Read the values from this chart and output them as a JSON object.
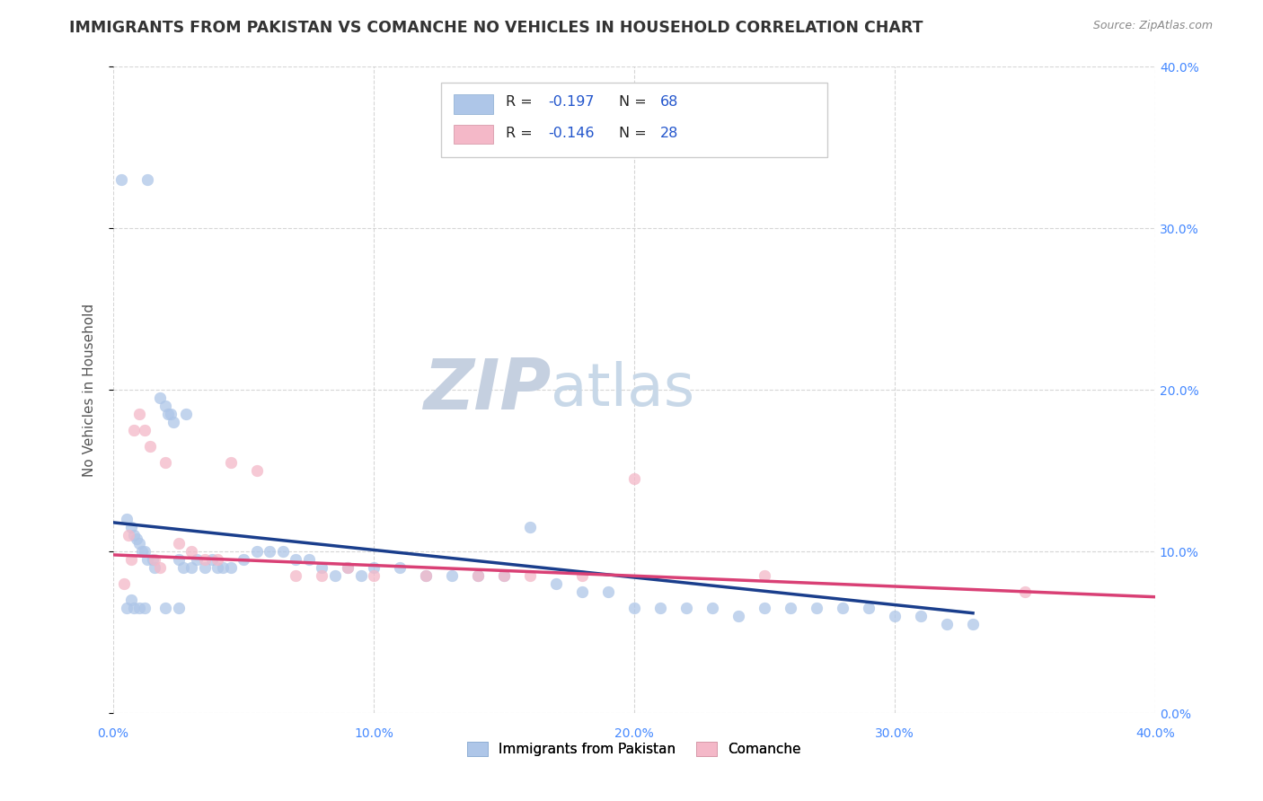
{
  "title": "IMMIGRANTS FROM PAKISTAN VS COMANCHE NO VEHICLES IN HOUSEHOLD CORRELATION CHART",
  "source_text": "Source: ZipAtlas.com",
  "ylabel": "No Vehicles in Household",
  "right_ytick_labels": [
    "0.0%",
    "10.0%",
    "20.0%",
    "30.0%",
    "40.0%"
  ],
  "right_ytick_values": [
    0.0,
    0.1,
    0.2,
    0.3,
    0.4
  ],
  "xlim": [
    0.0,
    0.4
  ],
  "ylim": [
    0.0,
    0.4
  ],
  "xtick_labels": [
    "0.0%",
    "10.0%",
    "20.0%",
    "30.0%",
    "40.0%"
  ],
  "xtick_values": [
    0.0,
    0.1,
    0.2,
    0.3,
    0.4
  ],
  "watermark_zip": "ZIP",
  "watermark_atlas": "atlas",
  "legend_labels_bottom": [
    "Immigrants from Pakistan",
    "Comanche"
  ],
  "blue_scatter_x": [
    0.003,
    0.013,
    0.005,
    0.007,
    0.008,
    0.009,
    0.01,
    0.011,
    0.012,
    0.013,
    0.015,
    0.016,
    0.018,
    0.02,
    0.021,
    0.022,
    0.023,
    0.025,
    0.027,
    0.028,
    0.03,
    0.032,
    0.035,
    0.038,
    0.04,
    0.042,
    0.045,
    0.05,
    0.055,
    0.06,
    0.065,
    0.07,
    0.075,
    0.08,
    0.085,
    0.09,
    0.095,
    0.1,
    0.11,
    0.12,
    0.13,
    0.14,
    0.15,
    0.16,
    0.17,
    0.18,
    0.19,
    0.2,
    0.21,
    0.22,
    0.23,
    0.24,
    0.25,
    0.26,
    0.27,
    0.28,
    0.29,
    0.3,
    0.31,
    0.32,
    0.33,
    0.005,
    0.007,
    0.008,
    0.01,
    0.012,
    0.02,
    0.025
  ],
  "blue_scatter_y": [
    0.33,
    0.33,
    0.12,
    0.115,
    0.11,
    0.108,
    0.105,
    0.1,
    0.1,
    0.095,
    0.095,
    0.09,
    0.195,
    0.19,
    0.185,
    0.185,
    0.18,
    0.095,
    0.09,
    0.185,
    0.09,
    0.095,
    0.09,
    0.095,
    0.09,
    0.09,
    0.09,
    0.095,
    0.1,
    0.1,
    0.1,
    0.095,
    0.095,
    0.09,
    0.085,
    0.09,
    0.085,
    0.09,
    0.09,
    0.085,
    0.085,
    0.085,
    0.085,
    0.115,
    0.08,
    0.075,
    0.075,
    0.065,
    0.065,
    0.065,
    0.065,
    0.06,
    0.065,
    0.065,
    0.065,
    0.065,
    0.065,
    0.06,
    0.06,
    0.055,
    0.055,
    0.065,
    0.07,
    0.065,
    0.065,
    0.065,
    0.065,
    0.065
  ],
  "pink_scatter_x": [
    0.004,
    0.006,
    0.007,
    0.008,
    0.01,
    0.012,
    0.014,
    0.016,
    0.018,
    0.02,
    0.025,
    0.03,
    0.035,
    0.04,
    0.045,
    0.055,
    0.07,
    0.08,
    0.09,
    0.1,
    0.12,
    0.14,
    0.15,
    0.16,
    0.18,
    0.2,
    0.25,
    0.35
  ],
  "pink_scatter_y": [
    0.08,
    0.11,
    0.095,
    0.175,
    0.185,
    0.175,
    0.165,
    0.095,
    0.09,
    0.155,
    0.105,
    0.1,
    0.095,
    0.095,
    0.155,
    0.15,
    0.085,
    0.085,
    0.09,
    0.085,
    0.085,
    0.085,
    0.085,
    0.085,
    0.085,
    0.145,
    0.085,
    0.075
  ],
  "blue_line_x": [
    0.0,
    0.33
  ],
  "blue_line_y": [
    0.118,
    0.062
  ],
  "pink_line_x": [
    0.0,
    0.4
  ],
  "pink_line_y": [
    0.098,
    0.072
  ],
  "blue_scatter_color": "#aec6e8",
  "pink_scatter_color": "#f4b8c8",
  "blue_line_color": "#1a3e8c",
  "pink_line_color": "#d94075",
  "scatter_alpha": 0.75,
  "scatter_size": 85,
  "background_color": "#ffffff",
  "grid_color": "#cccccc",
  "title_fontsize": 12.5,
  "axis_label_fontsize": 11,
  "tick_fontsize": 10,
  "watermark_color_zip": "#c5d0e0",
  "watermark_color_atlas": "#c8d8e8",
  "watermark_fontsize": 56
}
